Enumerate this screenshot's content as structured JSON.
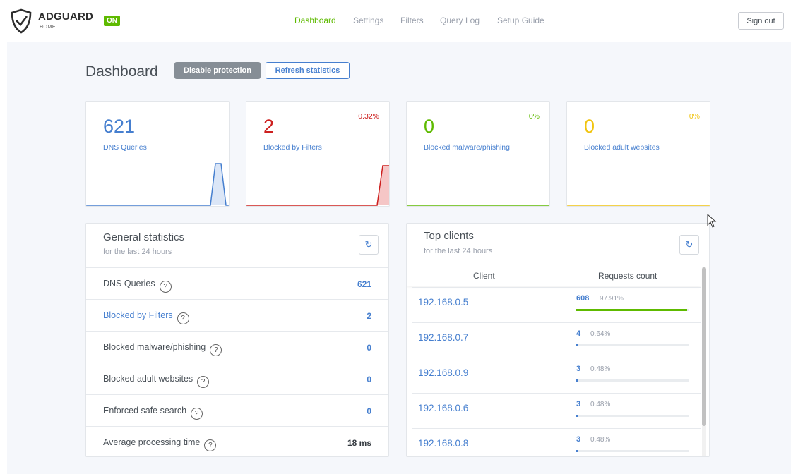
{
  "header": {
    "brand": "ADGUARD",
    "brand_sub": "HOME",
    "status_badge": "ON",
    "nav": [
      "Dashboard",
      "Settings",
      "Filters",
      "Query Log",
      "Setup Guide"
    ],
    "active_nav": "Dashboard",
    "sign_out": "Sign out"
  },
  "dashboard": {
    "title": "Dashboard",
    "disable_protection": "Disable protection",
    "refresh_statistics": "Refresh statistics"
  },
  "stat_cards": [
    {
      "value": "621",
      "label": "DNS Queries",
      "percent": "",
      "color": "#467fcf"
    },
    {
      "value": "2",
      "label": "Blocked by Filters",
      "percent": "0.32%",
      "color": "#cd201f"
    },
    {
      "value": "0",
      "label": "Blocked malware/phishing",
      "percent": "0%",
      "color": "#5eba00"
    },
    {
      "value": "0",
      "label": "Blocked adult websites",
      "percent": "0%",
      "color": "#f1c40f"
    }
  ],
  "general_statistics": {
    "title": "General statistics",
    "subtitle": "for the last 24 hours",
    "help_glyph": "?",
    "rows": [
      {
        "label": "DNS Queries",
        "value": "621"
      },
      {
        "label": "Blocked by Filters",
        "value": "2"
      },
      {
        "label": "Blocked malware/phishing",
        "value": "0"
      },
      {
        "label": "Blocked adult websites",
        "value": "0"
      },
      {
        "label": "Enforced safe search",
        "value": "0"
      },
      {
        "label": "Average processing time",
        "value": "18 ms"
      }
    ]
  },
  "top_clients": {
    "title": "Top clients",
    "subtitle": "for the last 24 hours",
    "col_client": "Client",
    "col_requests": "Requests count",
    "rows": [
      {
        "ip": "192.168.0.5",
        "count": "608",
        "percent": "97.91%",
        "fraction": 0.9791
      },
      {
        "ip": "192.168.0.7",
        "count": "4",
        "percent": "0.64%",
        "fraction": 0.0064
      },
      {
        "ip": "192.168.0.9",
        "count": "3",
        "percent": "0.48%",
        "fraction": 0.0048
      },
      {
        "ip": "192.168.0.6",
        "count": "3",
        "percent": "0.48%",
        "fraction": 0.0048
      },
      {
        "ip": "192.168.0.8",
        "count": "3",
        "percent": "0.48%",
        "fraction": 0.0048
      }
    ]
  }
}
